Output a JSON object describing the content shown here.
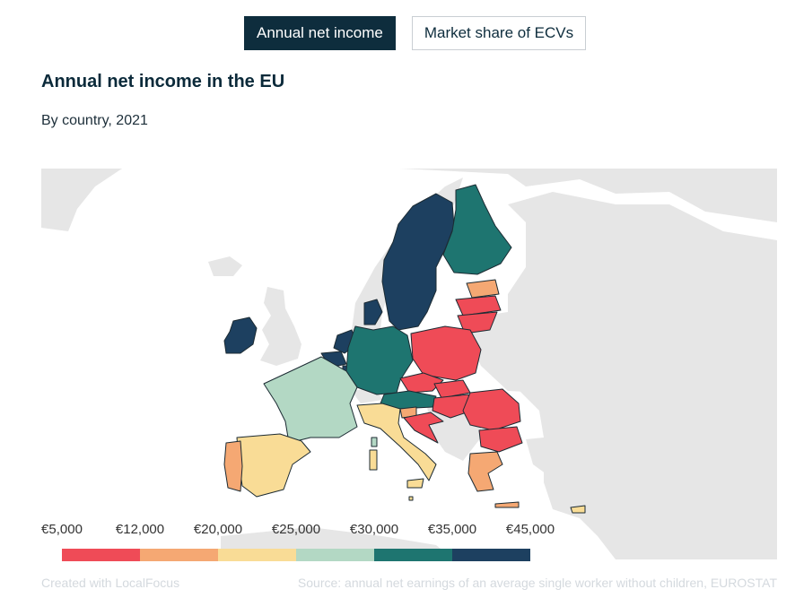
{
  "tabs": [
    {
      "label": "Annual net income",
      "active": true
    },
    {
      "label": "Market share of ECVs",
      "active": false
    }
  ],
  "title": "Annual net income in the EU",
  "subtitle": "By country, 2021",
  "legend": {
    "labels": [
      "€5,000",
      "€12,000",
      "€20,000",
      "€25,000",
      "€30,000",
      "€35,000",
      "€45,000"
    ],
    "colors": [
      "#ef4b57",
      "#f5a873",
      "#f9dc96",
      "#b3d8c4",
      "#1e7570",
      "#1d4060"
    ]
  },
  "colors": {
    "land_background": "#e6e6e6",
    "no_data": "#e6e6e6",
    "border": "#1c2b33"
  },
  "map_data": {
    "type": "choropleth",
    "countries": [
      {
        "name": "Ireland",
        "bin": "€35,000–€45,000"
      },
      {
        "name": "Netherlands",
        "bin": "€35,000–€45,000"
      },
      {
        "name": "Belgium",
        "bin": "€35,000–€45,000"
      },
      {
        "name": "Luxembourg",
        "bin": "€35,000–€45,000"
      },
      {
        "name": "Denmark",
        "bin": "€35,000–€45,000"
      },
      {
        "name": "Sweden",
        "bin": "€35,000–€45,000"
      },
      {
        "name": "Finland",
        "bin": "€30,000–€35,000"
      },
      {
        "name": "Germany",
        "bin": "€30,000–€35,000"
      },
      {
        "name": "Austria",
        "bin": "€30,000–€35,000"
      },
      {
        "name": "France",
        "bin": "€25,000–€30,000"
      },
      {
        "name": "Italy",
        "bin": "€20,000–€25,000"
      },
      {
        "name": "Spain",
        "bin": "€20,000–€25,000"
      },
      {
        "name": "Malta",
        "bin": "€20,000–€25,000"
      },
      {
        "name": "Cyprus",
        "bin": "€20,000–€25,000"
      },
      {
        "name": "Portugal",
        "bin": "€12,000–€20,000"
      },
      {
        "name": "Greece",
        "bin": "€12,000–€20,000"
      },
      {
        "name": "Slovenia",
        "bin": "€12,000–€20,000"
      },
      {
        "name": "Estonia",
        "bin": "€12,000–€20,000"
      },
      {
        "name": "Latvia",
        "bin": "€5,000–€12,000"
      },
      {
        "name": "Lithuania",
        "bin": "€5,000–€12,000"
      },
      {
        "name": "Poland",
        "bin": "€5,000–€12,000"
      },
      {
        "name": "Czechia",
        "bin": "€5,000–€12,000"
      },
      {
        "name": "Slovakia",
        "bin": "€5,000–€12,000"
      },
      {
        "name": "Hungary",
        "bin": "€5,000–€12,000"
      },
      {
        "name": "Croatia",
        "bin": "€5,000–€12,000"
      },
      {
        "name": "Romania",
        "bin": "€5,000–€12,000"
      },
      {
        "name": "Bulgaria",
        "bin": "€5,000–€12,000"
      }
    ]
  },
  "footer": {
    "credit": "Created with LocalFocus",
    "source": "Source:  annual net earnings of an average single worker without children, EUROSTAT"
  }
}
